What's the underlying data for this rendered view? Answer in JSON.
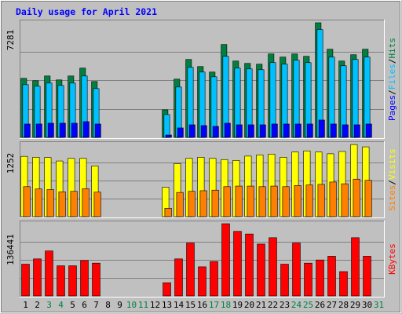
{
  "colors": {
    "background": "#c0c0c0",
    "frame_dark": "#808080",
    "frame_light": "#ffffff",
    "grid": "#808080",
    "title": "#0000ff",
    "hits": "#008040",
    "files": "#00c0ff",
    "pages": "#0000ff",
    "visits": "#ffff00",
    "sites": "#ff8000",
    "kbytes": "#ff0000",
    "day_weekday": "#000000",
    "day_weekend": "#008040"
  },
  "chart_data": {
    "type": "bar",
    "title": "Daily usage for April 2021",
    "x": {
      "days": [
        "1",
        "2",
        "3",
        "4",
        "5",
        "6",
        "7",
        "8",
        "9",
        "10",
        "11",
        "12",
        "13",
        "14",
        "15",
        "16",
        "17",
        "18",
        "19",
        "20",
        "21",
        "22",
        "23",
        "24",
        "25",
        "26",
        "27",
        "28",
        "29",
        "30",
        "31"
      ],
      "weekend_days": [
        "3",
        "4",
        "10",
        "11",
        "17",
        "18",
        "24",
        "25",
        "31"
      ]
    },
    "panels": [
      {
        "name": "hits-files-pages",
        "axis_max_label": "7281",
        "ymax": 7281,
        "legend": [
          {
            "label": "Hits",
            "color": "#008040"
          },
          {
            "label": "/",
            "color": "#000000"
          },
          {
            "label": "Files",
            "color": "#00c0ff"
          },
          {
            "label": "/",
            "color": "#000000"
          },
          {
            "label": "Pages",
            "color": "#0000ff"
          }
        ],
        "series": [
          {
            "key": "hits",
            "color": "#008040",
            "values": [
              3750,
              3600,
              3900,
              3650,
              3900,
              4400,
              3550,
              0,
              0,
              0,
              0,
              0,
              1750,
              3700,
              4950,
              4500,
              4150,
              5900,
              4850,
              4700,
              4650,
              5300,
              5100,
              5300,
              5150,
              7281,
              5600,
              4850,
              5250,
              5600,
              0
            ]
          },
          {
            "key": "files",
            "color": "#00c0ff",
            "values": [
              3350,
              3250,
              3450,
              3300,
              3450,
              3900,
              3100,
              0,
              0,
              0,
              0,
              0,
              1450,
              3200,
              4450,
              4150,
              3850,
              5150,
              4400,
              4350,
              4300,
              4750,
              4650,
              4900,
              4750,
              6850,
              5100,
              4550,
              4950,
              5100,
              0
            ]
          },
          {
            "key": "pages",
            "color": "#0000ff",
            "values": [
              850,
              850,
              900,
              900,
              900,
              1000,
              850,
              0,
              0,
              0,
              0,
              0,
              150,
              600,
              800,
              750,
              700,
              900,
              800,
              800,
              800,
              850,
              850,
              850,
              850,
              1100,
              850,
              800,
              800,
              850,
              0
            ]
          }
        ]
      },
      {
        "name": "visits-sites",
        "axis_max_label": "1252",
        "ymax": 1252,
        "legend": [
          {
            "label": "Visits",
            "color": "#ffff00"
          },
          {
            "label": "/",
            "color": "#000000"
          },
          {
            "label": "Sites",
            "color": "#ff8000"
          }
        ],
        "series": [
          {
            "key": "visits",
            "color": "#ffff00",
            "values": [
              1045,
              1030,
              1025,
              965,
              1010,
              1010,
              880,
              0,
              0,
              0,
              0,
              0,
              510,
              920,
              1010,
              1030,
              1010,
              990,
              975,
              1050,
              1070,
              1085,
              1030,
              1120,
              1140,
              1120,
              1090,
              1130,
              1250,
              1210,
              0
            ]
          },
          {
            "key": "sites",
            "color": "#ff8000",
            "values": [
              520,
              480,
              470,
              430,
              440,
              485,
              425,
              0,
              0,
              0,
              0,
              0,
              145,
              420,
              440,
              450,
              460,
              520,
              530,
              530,
              520,
              530,
              520,
              540,
              550,
              560,
              600,
              570,
              650,
              630,
              0
            ]
          }
        ]
      },
      {
        "name": "kbytes",
        "axis_max_label": "136441",
        "ymax": 136441,
        "legend": [
          {
            "label": "KBytes",
            "color": "#ff0000"
          }
        ],
        "series": [
          {
            "key": "kbytes",
            "color": "#ff0000",
            "values": [
              60000,
              70000,
              85000,
              57000,
              57000,
              67000,
              62000,
              0,
              0,
              0,
              0,
              0,
              25000,
              70000,
              100000,
              55000,
              65000,
              136441,
              122000,
              117000,
              98000,
              110000,
              60000,
              100000,
              62000,
              68000,
              75000,
              46000,
              110000,
              75000,
              0
            ]
          }
        ]
      }
    ]
  }
}
